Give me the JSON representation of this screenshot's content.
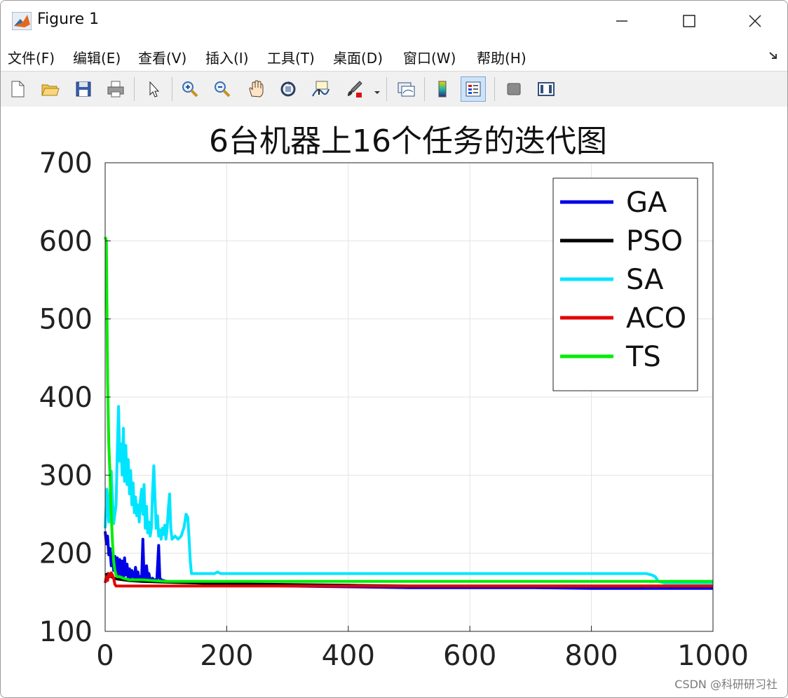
{
  "window": {
    "title": "Figure 1",
    "menu": [
      "文件(F)",
      "编辑(E)",
      "查看(V)",
      "插入(I)",
      "工具(T)",
      "桌面(D)",
      "窗口(W)",
      "帮助(H)"
    ],
    "toolbar_icons": [
      "new-file-icon",
      "open-folder-icon",
      "save-icon",
      "print-icon",
      "pointer-icon",
      "zoom-in-icon",
      "zoom-out-icon",
      "pan-hand-icon",
      "rotate-3d-icon",
      "data-cursor-icon",
      "brush-icon",
      "link-plot-icon",
      "colorbar-icon",
      "legend-icon",
      "hide-plot-tools-icon",
      "show-plot-tools-icon"
    ]
  },
  "watermark": "CSDN @科研研习社",
  "chart_data": {
    "type": "line",
    "title": "6台机器上16个任务的迭代图",
    "xlabel": "",
    "ylabel": "",
    "xlim": [
      0,
      1000
    ],
    "ylim": [
      100,
      700
    ],
    "xticks": [
      0,
      200,
      400,
      600,
      800,
      1000
    ],
    "yticks": [
      100,
      200,
      300,
      400,
      500,
      600,
      700
    ],
    "grid": true,
    "legend_position": "top-right",
    "series": [
      {
        "name": "GA",
        "color": "#0000e6",
        "points": [
          [
            0,
            228
          ],
          [
            2,
            212
          ],
          [
            4,
            222
          ],
          [
            6,
            198
          ],
          [
            8,
            206
          ],
          [
            10,
            184
          ],
          [
            12,
            200
          ],
          [
            14,
            178
          ],
          [
            16,
            196
          ],
          [
            18,
            176
          ],
          [
            20,
            194
          ],
          [
            22,
            172
          ],
          [
            24,
            192
          ],
          [
            26,
            170
          ],
          [
            28,
            190
          ],
          [
            30,
            168
          ],
          [
            32,
            194
          ],
          [
            34,
            172
          ],
          [
            36,
            186
          ],
          [
            38,
            168
          ],
          [
            40,
            180
          ],
          [
            42,
            166
          ],
          [
            44,
            178
          ],
          [
            46,
            172
          ],
          [
            48,
            168
          ],
          [
            50,
            182
          ],
          [
            52,
            166
          ],
          [
            54,
            176
          ],
          [
            56,
            166
          ],
          [
            58,
            170
          ],
          [
            60,
            166
          ],
          [
            62,
            218
          ],
          [
            64,
            168
          ],
          [
            66,
            168
          ],
          [
            68,
            184
          ],
          [
            70,
            168
          ],
          [
            72,
            174
          ],
          [
            74,
            166
          ],
          [
            78,
            168
          ],
          [
            80,
            166
          ],
          [
            85,
            166
          ],
          [
            88,
            210
          ],
          [
            90,
            168
          ],
          [
            92,
            166
          ],
          [
            100,
            164
          ],
          [
            150,
            162
          ],
          [
            200,
            160
          ],
          [
            300,
            158
          ],
          [
            400,
            157
          ],
          [
            500,
            156
          ],
          [
            600,
            156
          ],
          [
            700,
            156
          ],
          [
            800,
            155
          ],
          [
            900,
            155
          ],
          [
            1000,
            155
          ]
        ]
      },
      {
        "name": "PSO",
        "color": "#000000",
        "points": [
          [
            0,
            172
          ],
          [
            5,
            174
          ],
          [
            10,
            170
          ],
          [
            15,
            168
          ],
          [
            20,
            167
          ],
          [
            30,
            166
          ],
          [
            40,
            165
          ],
          [
            60,
            164
          ],
          [
            100,
            163
          ],
          [
            150,
            162
          ],
          [
            200,
            161
          ],
          [
            300,
            160
          ],
          [
            400,
            159
          ],
          [
            500,
            158
          ],
          [
            600,
            158
          ],
          [
            700,
            158
          ],
          [
            800,
            158
          ],
          [
            900,
            158
          ],
          [
            1000,
            158
          ]
        ]
      },
      {
        "name": "SA",
        "color": "#00e5ff",
        "points": [
          [
            0,
            232
          ],
          [
            3,
            282
          ],
          [
            6,
            240
          ],
          [
            10,
            305
          ],
          [
            14,
            238
          ],
          [
            18,
            262
          ],
          [
            20,
            330
          ],
          [
            22,
            388
          ],
          [
            24,
            318
          ],
          [
            26,
            340
          ],
          [
            28,
            300
          ],
          [
            30,
            360
          ],
          [
            32,
            292
          ],
          [
            34,
            338
          ],
          [
            36,
            288
          ],
          [
            38,
            320
          ],
          [
            40,
            276
          ],
          [
            42,
            306
          ],
          [
            44,
            262
          ],
          [
            46,
            290
          ],
          [
            48,
            252
          ],
          [
            50,
            272
          ],
          [
            52,
            248
          ],
          [
            54,
            262
          ],
          [
            56,
            240
          ],
          [
            58,
            268
          ],
          [
            60,
            282
          ],
          [
            62,
            250
          ],
          [
            64,
            288
          ],
          [
            66,
            232
          ],
          [
            68,
            260
          ],
          [
            70,
            226
          ],
          [
            72,
            240
          ],
          [
            74,
            222
          ],
          [
            76,
            232
          ],
          [
            78,
            278
          ],
          [
            80,
            312
          ],
          [
            82,
            270
          ],
          [
            84,
            232
          ],
          [
            86,
            248
          ],
          [
            88,
            222
          ],
          [
            90,
            230
          ],
          [
            92,
            218
          ],
          [
            94,
            232
          ],
          [
            96,
            224
          ],
          [
            98,
            236
          ],
          [
            100,
            218
          ],
          [
            102,
            232
          ],
          [
            104,
            258
          ],
          [
            106,
            276
          ],
          [
            108,
            232
          ],
          [
            110,
            218
          ],
          [
            115,
            222
          ],
          [
            120,
            218
          ],
          [
            125,
            222
          ],
          [
            130,
            234
          ],
          [
            133,
            250
          ],
          [
            136,
            246
          ],
          [
            138,
            220
          ],
          [
            140,
            190
          ],
          [
            142,
            174
          ],
          [
            150,
            174
          ],
          [
            180,
            174
          ],
          [
            185,
            176
          ],
          [
            190,
            174
          ],
          [
            250,
            174
          ],
          [
            400,
            174
          ],
          [
            600,
            174
          ],
          [
            800,
            174
          ],
          [
            880,
            174
          ],
          [
            890,
            174
          ],
          [
            900,
            172
          ],
          [
            905,
            170
          ],
          [
            910,
            164
          ],
          [
            920,
            162
          ],
          [
            1000,
            162
          ]
        ]
      },
      {
        "name": "ACO",
        "color": "#e60000",
        "points": [
          [
            0,
            162
          ],
          [
            2,
            170
          ],
          [
            4,
            165
          ],
          [
            6,
            174
          ],
          [
            8,
            170
          ],
          [
            10,
            175
          ],
          [
            12,
            172
          ],
          [
            14,
            168
          ],
          [
            16,
            160
          ],
          [
            18,
            158
          ],
          [
            30,
            158
          ],
          [
            100,
            158
          ],
          [
            300,
            158
          ],
          [
            600,
            158
          ],
          [
            1000,
            158
          ]
        ]
      },
      {
        "name": "TS",
        "color": "#00ee00",
        "points": [
          [
            0,
            605
          ],
          [
            2,
            600
          ],
          [
            4,
            420
          ],
          [
            6,
            340
          ],
          [
            8,
            300
          ],
          [
            10,
            250
          ],
          [
            12,
            215
          ],
          [
            14,
            190
          ],
          [
            16,
            178
          ],
          [
            18,
            172
          ],
          [
            20,
            170
          ],
          [
            24,
            170
          ],
          [
            30,
            168
          ],
          [
            40,
            166
          ],
          [
            60,
            166
          ],
          [
            100,
            164
          ],
          [
            200,
            164
          ],
          [
            300,
            164
          ],
          [
            400,
            164
          ],
          [
            500,
            164
          ],
          [
            600,
            164
          ],
          [
            700,
            164
          ],
          [
            800,
            164
          ],
          [
            900,
            164
          ],
          [
            1000,
            164
          ]
        ]
      }
    ]
  }
}
